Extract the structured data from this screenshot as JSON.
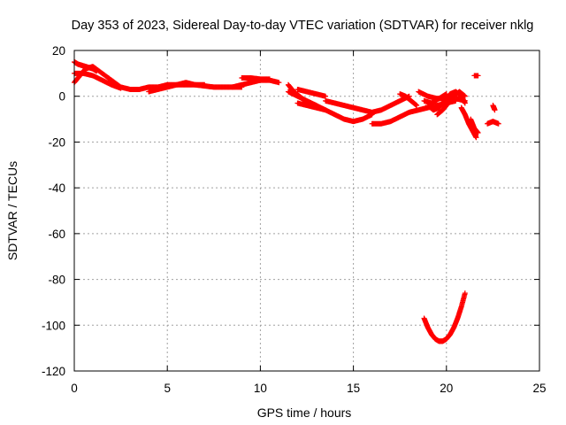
{
  "chart_data": {
    "type": "scatter",
    "title": "Day 353 of 2023, Sidereal Day-to-day VTEC variation (SDTVAR) for receiver nklg",
    "xlabel": "GPS time / hours",
    "ylabel": "SDTVAR / TECUs",
    "xlim": [
      0,
      25
    ],
    "ylim": [
      -120,
      20
    ],
    "x_ticks": [
      0,
      5,
      10,
      15,
      20,
      25
    ],
    "y_ticks": [
      20,
      0,
      -20,
      -40,
      -60,
      -80,
      -100,
      -120
    ],
    "grid": true,
    "marker": "+",
    "series": [
      {
        "name": "SDTVAR",
        "color": "#ff0000",
        "curves": [
          {
            "x": [
              0,
              0.3,
              0.6,
              1.0,
              1.5,
              2.0,
              2.5,
              3.0,
              3.5,
              4.0,
              4.5,
              5.0,
              5.5,
              6.0,
              6.5,
              7.0,
              7.5,
              8.0,
              8.5,
              9.0
            ],
            "y": [
              6,
              9,
              12,
              13,
              10,
              7,
              4,
              3,
              3,
              4,
              4,
              5,
              5,
              5,
              5,
              4.5,
              4,
              4,
              4,
              4
            ]
          },
          {
            "x": [
              0,
              0.2,
              0.4,
              0.6,
              0.8,
              1.0,
              1.2
            ],
            "y": [
              15,
              14,
              13.5,
              13,
              12.5,
              12,
              11
            ]
          },
          {
            "x": [
              0,
              0.5,
              1.0,
              1.5,
              2.0,
              2.5
            ],
            "y": [
              10,
              10,
              9,
              7,
              5,
              3.5
            ]
          },
          {
            "x": [
              4.0,
              4.5,
              5.0,
              5.5,
              6.0,
              6.5,
              7.0
            ],
            "y": [
              2,
              3,
              4,
              5,
              6,
              5,
              5
            ]
          },
          {
            "x": [
              8.5,
              9.0,
              9.5,
              10.0,
              10.5,
              11.0
            ],
            "y": [
              4,
              5,
              6,
              7,
              7,
              6
            ]
          },
          {
            "x": [
              9.0,
              9.5,
              10.0,
              10.5
            ],
            "y": [
              8,
              8,
              7.5,
              7.5
            ]
          },
          {
            "x": [
              11.5,
              11.8,
              12.1,
              12.4,
              12.7,
              13.0
            ],
            "y": [
              5,
              2,
              0,
              -2,
              -3,
              -4
            ]
          },
          {
            "x": [
              11.5,
              12.0,
              12.5,
              13.0,
              13.5,
              14.0,
              14.5,
              15.0,
              15.5,
              16.0
            ],
            "y": [
              2,
              0,
              -2,
              -4,
              -6,
              -8,
              -10,
              -11,
              -10,
              -8
            ]
          },
          {
            "x": [
              12.0,
              12.5,
              13.0,
              13.5
            ],
            "y": [
              3,
              2,
              1,
              0
            ]
          },
          {
            "x": [
              12.0,
              12.5,
              13.0,
              13.5
            ],
            "y": [
              -3,
              -4,
              -5,
              -6
            ]
          },
          {
            "x": [
              13.5,
              14.0,
              14.5,
              15.0,
              15.5,
              16.0,
              16.5,
              17.0,
              17.5,
              18.0
            ],
            "y": [
              -2,
              -3,
              -4,
              -5,
              -6,
              -7,
              -6,
              -4,
              -2,
              0
            ]
          },
          {
            "x": [
              16.0,
              16.5,
              17.0,
              17.5,
              18.0,
              18.5,
              19.0,
              19.5,
              20.0,
              20.5
            ],
            "y": [
              -12,
              -12,
              -11,
              -9,
              -7,
              -6,
              -5,
              -4,
              -3,
              -2
            ]
          },
          {
            "x": [
              17.5,
              17.8,
              18.1,
              18.4
            ],
            "y": [
              1,
              0,
              -2,
              -4
            ]
          },
          {
            "x": [
              18.5,
              19.0,
              19.5,
              20.0,
              20.5,
              21.0
            ],
            "y": [
              2,
              0,
              -1,
              -1,
              -1,
              -2
            ]
          },
          {
            "x": [
              19.0,
              19.3,
              19.6,
              19.9,
              20.2,
              20.5,
              20.8,
              21.0
            ],
            "y": [
              -4,
              -6,
              -5,
              -2,
              1,
              2,
              0,
              -3
            ]
          },
          {
            "x": [
              18.8,
              19.2,
              19.6,
              20.0
            ],
            "y": [
              -2,
              -3,
              -1,
              1
            ]
          },
          {
            "x": [
              19.5,
              19.8,
              20.1,
              20.4,
              20.7,
              21.0
            ],
            "y": [
              -8,
              -6,
              -3,
              0,
              2,
              0
            ]
          },
          {
            "x": [
              20.8,
              21.0,
              21.2,
              21.4,
              21.6
            ],
            "y": [
              -5,
              -8,
              -12,
              -15,
              -18
            ]
          },
          {
            "x": [
              21.3,
              21.5,
              21.7
            ],
            "y": [
              -10,
              -14,
              -16
            ]
          },
          {
            "x": [
              22.2,
              22.5,
              22.8
            ],
            "y": [
              -12,
              -11,
              -12
            ]
          },
          {
            "x": [
              22.5,
              22.6
            ],
            "y": [
              -4,
              -6
            ]
          },
          {
            "x": [
              21.5,
              21.7
            ],
            "y": [
              9,
              9
            ]
          },
          {
            "x": [
              18.8,
              19.0,
              19.2,
              19.4,
              19.6,
              19.8,
              20.0,
              20.2,
              20.4,
              20.6,
              20.8,
              21.0
            ],
            "y": [
              -97,
              -101,
              -104,
              -106,
              -107,
              -107,
              -106,
              -104,
              -101,
              -97,
              -92,
              -86
            ]
          }
        ]
      }
    ]
  }
}
